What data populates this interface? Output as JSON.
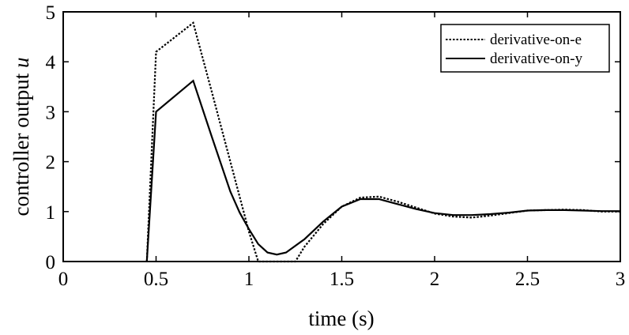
{
  "chart_data": {
    "type": "line",
    "title": "",
    "xlabel": "time (s)",
    "ylabel": "controller output u",
    "ylabel_main": "controller output ",
    "ylabel_var": "u",
    "xlim": [
      0,
      3
    ],
    "ylim": [
      0,
      5
    ],
    "xticks": [
      "0",
      "0.5",
      "1",
      "1.5",
      "2",
      "2.5",
      "3"
    ],
    "yticks": [
      "0",
      "1",
      "2",
      "3",
      "4",
      "5"
    ],
    "grid": false,
    "legend_position": "upper right",
    "series": [
      {
        "name": "derivative-on-e",
        "style": "dotted",
        "x": [
          0.45,
          0.5,
          0.7,
          0.8,
          0.9,
          1.0,
          1.05,
          1.1,
          1.2,
          1.25,
          1.3,
          1.4,
          1.5,
          1.6,
          1.7,
          1.8,
          1.9,
          2.0,
          2.1,
          2.2,
          2.3,
          2.4,
          2.5,
          2.6,
          2.7,
          2.8,
          2.9,
          3.0
        ],
        "values": [
          0,
          4.2,
          4.78,
          3.4,
          2.0,
          0.6,
          0.0,
          0.0,
          0.0,
          0.0,
          0.3,
          0.75,
          1.1,
          1.28,
          1.3,
          1.2,
          1.08,
          0.96,
          0.9,
          0.88,
          0.92,
          0.97,
          1.02,
          1.03,
          1.04,
          1.03,
          1.0,
          1.0
        ]
      },
      {
        "name": "derivative-on-y",
        "style": "solid",
        "x": [
          0.45,
          0.5,
          0.7,
          0.8,
          0.9,
          0.95,
          1.0,
          1.05,
          1.1,
          1.15,
          1.2,
          1.3,
          1.4,
          1.5,
          1.6,
          1.7,
          1.8,
          1.9,
          2.0,
          2.1,
          2.2,
          2.3,
          2.4,
          2.5,
          2.6,
          2.7,
          2.8,
          2.9,
          3.0
        ],
        "values": [
          0,
          3.0,
          3.62,
          2.5,
          1.4,
          0.98,
          0.65,
          0.35,
          0.18,
          0.14,
          0.18,
          0.45,
          0.8,
          1.1,
          1.25,
          1.25,
          1.15,
          1.05,
          0.97,
          0.93,
          0.93,
          0.95,
          0.98,
          1.02,
          1.03,
          1.03,
          1.02,
          1.01,
          1.01
        ]
      }
    ]
  }
}
